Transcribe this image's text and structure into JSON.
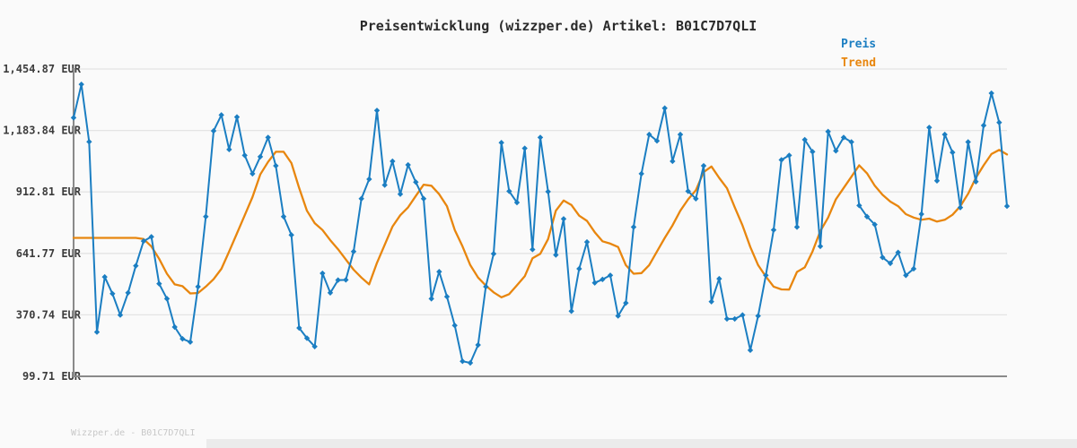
{
  "chart_data": {
    "type": "line",
    "title": "Preisentwicklung (wizzper.de) Artikel: B01C7D7QLI",
    "watermark": "Wizzper.de - B01C7D7QLI",
    "currency": "EUR",
    "ylim": [
      99.71,
      1454.87
    ],
    "y_ticks": [
      {
        "label": "1,454.87 EUR",
        "value": 1454.87
      },
      {
        "label": "1,183.84 EUR",
        "value": 1183.84
      },
      {
        "label": "912.81 EUR",
        "value": 912.81
      },
      {
        "label": "641.77 EUR",
        "value": 641.77
      },
      {
        "label": "370.74 EUR",
        "value": 370.74
      },
      {
        "label": "99.71 EUR",
        "value": 99.71
      }
    ],
    "x_axis": {
      "labels_visible": false,
      "point_count": 121
    },
    "grid": "horizontal",
    "legend_position": "top-right",
    "colors": {
      "grid": "#e4e4e4",
      "axis": "#8a8a8a",
      "background": "#fafafa",
      "title_text": "#2b2b2b",
      "tick_text": "#3c3c3c",
      "watermark_text": "#c8c8c8"
    },
    "series": [
      {
        "name": "Preis",
        "color": "#1b7ec2",
        "marker": "diamond",
        "values": [
          1240,
          1387,
          1134,
          295,
          538,
          464,
          370,
          468,
          587,
          696,
          715,
          508,
          442,
          317,
          265,
          251,
          495,
          804,
          1182,
          1252,
          1100,
          1243,
          1074,
          993,
          1068,
          1153,
          1028,
          804,
          723,
          313,
          268,
          231,
          554,
          468,
          524,
          525,
          650,
          883,
          969,
          1272,
          943,
          1048,
          903,
          1032,
          956,
          883,
          442,
          561,
          451,
          324,
          166,
          159,
          238,
          495,
          640,
          1130,
          916,
          866,
          1105,
          659,
          1153,
          914,
          635,
          794,
          387,
          574,
          692,
          512,
          527,
          545,
          366,
          423,
          758,
          993,
          1166,
          1138,
          1282,
          1048,
          1166,
          916,
          883,
          1028,
          429,
          530,
          353,
          353,
          370,
          215,
          366,
          545,
          745,
          1054,
          1074,
          758,
          1143,
          1090,
          673,
          1179,
          1094,
          1153,
          1133,
          853,
          804,
          769,
          624,
          598,
          646,
          545,
          574,
          815,
          1197,
          962,
          1166,
          1087,
          844,
          1133,
          958,
          1206,
          1348,
          1219,
          850
        ]
      },
      {
        "name": "Trend",
        "color": "#e8860e",
        "marker": "none",
        "values": [
          710,
          710,
          710,
          710,
          710,
          710,
          710,
          710,
          710,
          705,
          672,
          618,
          552,
          505,
          497,
          465,
          467,
          495,
          528,
          574,
          650,
          730,
          810,
          890,
          990,
          1045,
          1090,
          1090,
          1040,
          930,
          830,
          775,
          745,
          700,
          660,
          615,
          570,
          535,
          505,
          600,
          680,
          760,
          810,
          845,
          895,
          945,
          940,
          903,
          850,
          745,
          673,
          590,
          535,
          500,
          470,
          448,
          462,
          501,
          541,
          620,
          640,
          705,
          830,
          875,
          855,
          808,
          785,
          735,
          695,
          685,
          670,
          590,
          552,
          555,
          590,
          650,
          710,
          765,
          830,
          880,
          920,
          1000,
          1025,
          975,
          929,
          845,
          765,
          670,
          590,
          540,
          495,
          483,
          482,
          560,
          580,
          650,
          740,
          800,
          880,
          930,
          980,
          1030,
          995,
          940,
          900,
          870,
          850,
          815,
          800,
          790,
          795,
          782,
          790,
          812,
          850,
          905,
          975,
          1030,
          1080,
          1098,
          1078
        ]
      }
    ]
  }
}
